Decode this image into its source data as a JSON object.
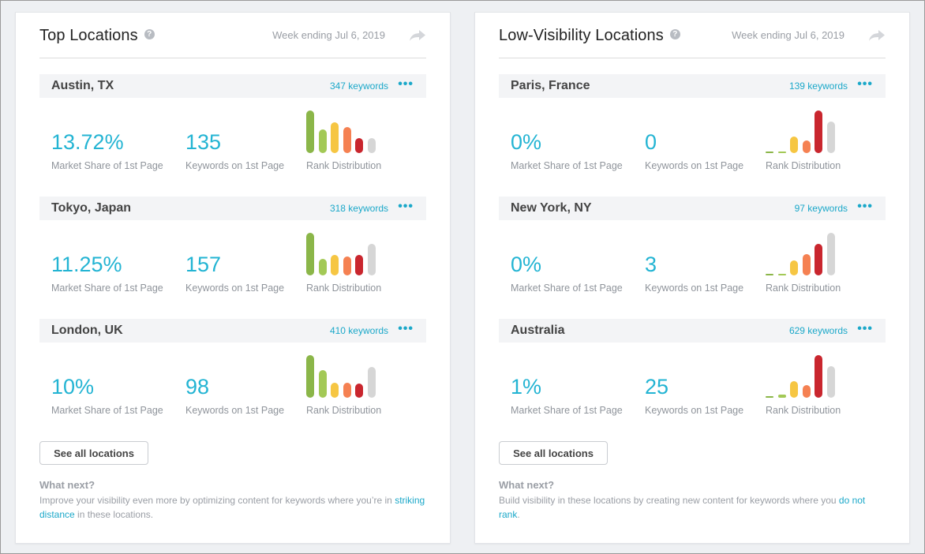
{
  "colors": {
    "accent": "#1ba8c9",
    "metric": "#23b4d3",
    "rank_1": "#8bb649",
    "rank_2": "#a3c956",
    "rank_3": "#f6c643",
    "rank_4": "#f58152",
    "rank_5": "#c9262e",
    "rank_6": "#d6d6d6"
  },
  "top": {
    "title": "Top Locations",
    "week": "Week ending Jul 6, 2019",
    "locations": [
      {
        "name": "Austin, TX",
        "keywords": "347 keywords",
        "market_share": "13.72%",
        "market_share_label": "Market Share of 1st Page",
        "kw_first": "135",
        "kw_first_label": "Keywords on 1st Page",
        "rank_label": "Rank Distribution",
        "rank_distribution": [
          1.0,
          0.55,
          0.72,
          0.62,
          0.35,
          0.35
        ]
      },
      {
        "name": "Tokyo, Japan",
        "keywords": "318 keywords",
        "market_share": "11.25%",
        "market_share_label": "Market Share of 1st Page",
        "kw_first": "157",
        "kw_first_label": "Keywords on 1st Page",
        "rank_label": "Rank Distribution",
        "rank_distribution": [
          1.0,
          0.38,
          0.48,
          0.45,
          0.48,
          0.74
        ]
      },
      {
        "name": "London, UK",
        "keywords": "410 keywords",
        "market_share": "10%",
        "market_share_label": "Market Share of 1st Page",
        "kw_first": "98",
        "kw_first_label": "Keywords on 1st Page",
        "rank_label": "Rank Distribution",
        "rank_distribution": [
          1.0,
          0.64,
          0.36,
          0.36,
          0.34,
          0.72
        ]
      }
    ],
    "button": "See all locations",
    "next_title": "What next?",
    "next_text": "Improve your visibility even more by optimizing content for keywords where you’re in ",
    "next_link": "striking distance",
    "next_text_after": " in these locations."
  },
  "low": {
    "title": "Low-Visibility Locations",
    "week": "Week ending Jul 6, 2019",
    "locations": [
      {
        "name": "Paris, France",
        "keywords": "139 keywords",
        "market_share": "0%",
        "market_share_label": "Market Share of 1st Page",
        "kw_first": "0",
        "kw_first_label": "Keywords on 1st Page",
        "rank_label": "Rank Distribution",
        "rank_distribution": [
          0,
          0,
          0.38,
          0.3,
          1.0,
          0.74
        ]
      },
      {
        "name": "New York, NY",
        "keywords": "97 keywords",
        "market_share": "0%",
        "market_share_label": "Market Share of 1st Page",
        "kw_first": "3",
        "kw_first_label": "Keywords on 1st Page",
        "rank_label": "Rank Distribution",
        "rank_distribution": [
          0,
          0,
          0.36,
          0.5,
          0.74,
          1.0
        ]
      },
      {
        "name": "Australia",
        "keywords": "629 keywords",
        "market_share": "1%",
        "market_share_label": "Market Share of 1st Page",
        "kw_first": "25",
        "kw_first_label": "Keywords on 1st Page",
        "rank_label": "Rank Distribution",
        "rank_distribution": [
          0,
          0.08,
          0.38,
          0.3,
          1.0,
          0.74
        ]
      }
    ],
    "button": "See all locations",
    "next_title": "What next?",
    "next_text": "Build visibility in these locations by creating new content for keywords where you ",
    "next_link": "do not rank",
    "next_text_after": "."
  }
}
